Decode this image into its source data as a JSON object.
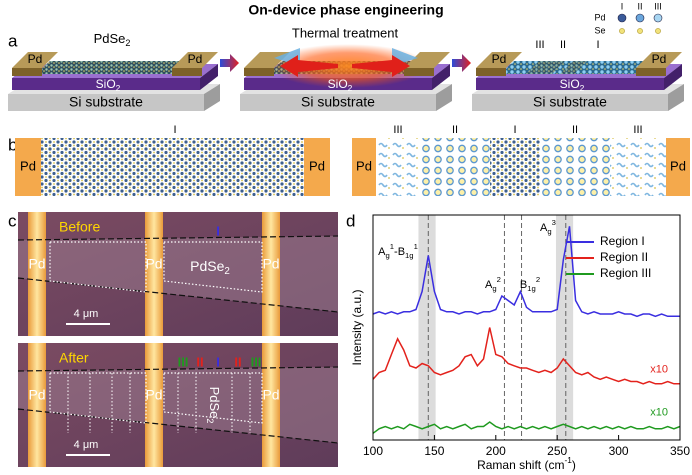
{
  "title": "On-device phase engineering",
  "panel_labels": [
    "a",
    "b",
    "c",
    "d"
  ],
  "panel_a": {
    "electrode": "Pd",
    "material": "PdSe",
    "material_sub": "2",
    "process": "Thermal treatment",
    "oxide": "SiO",
    "oxide_sub": "2",
    "substrate": "Si substrate",
    "regions": [
      "III",
      "II",
      "I"
    ],
    "legend": {
      "columns": [
        "I",
        "II",
        "III"
      ],
      "rows": [
        "Pd",
        "Se"
      ]
    }
  },
  "panel_b": {
    "electrode": "Pd",
    "left_regions": [
      "I"
    ],
    "right_regions": [
      "III",
      "II",
      "I",
      "II",
      "III"
    ]
  },
  "panel_c": {
    "electrode": "Pd",
    "material": "PdSe",
    "material_sub": "2",
    "before": "Before",
    "after": "After",
    "scale_bar": "4 μm",
    "regions_before": [
      "I"
    ],
    "regions_after": [
      "III",
      "II",
      "I",
      "II",
      "III"
    ]
  },
  "chart_data": {
    "type": "line",
    "x_label": "Raman shift (cm",
    "x_label_sup": "-1",
    "x_label_end": ")",
    "y_label": "Intensity (a.u.)",
    "xlim": [
      100,
      350
    ],
    "xticks": [
      100,
      150,
      200,
      250,
      300,
      350
    ],
    "ylim": [
      0,
      100
    ],
    "x": [
      100,
      105,
      110,
      115,
      120,
      125,
      130,
      135,
      140,
      145,
      150,
      155,
      160,
      165,
      170,
      175,
      180,
      185,
      190,
      195,
      200,
      205,
      210,
      215,
      220,
      225,
      230,
      235,
      240,
      245,
      250,
      255,
      260,
      265,
      270,
      275,
      280,
      285,
      290,
      295,
      300,
      305,
      310,
      315,
      320,
      325,
      330,
      335,
      340,
      345,
      350
    ],
    "series": [
      {
        "name": "Region I",
        "color": "#3a2ee0",
        "values": [
          56,
          57,
          56,
          57,
          56,
          57,
          57,
          58,
          66,
          82,
          66,
          58,
          57,
          57,
          56,
          57,
          57,
          56,
          57,
          57,
          58,
          64,
          62,
          60,
          66,
          59,
          57,
          57,
          57,
          57,
          58,
          80,
          95,
          62,
          57,
          56,
          57,
          56,
          56,
          56,
          57,
          56,
          56,
          55,
          56,
          56,
          55,
          56,
          55,
          55,
          55
        ]
      },
      {
        "name": "Region II",
        "color": "#e3221c",
        "scale_label": "x10",
        "values": [
          27,
          30,
          31,
          38,
          45,
          40,
          33,
          32,
          34,
          33,
          30,
          29,
          30,
          31,
          33,
          37,
          38,
          33,
          36,
          50,
          38,
          37,
          34,
          33,
          32,
          32,
          31,
          30,
          31,
          30,
          32,
          36,
          33,
          30,
          29,
          30,
          28,
          27,
          28,
          27,
          26,
          27,
          26,
          26,
          25,
          26,
          25,
          25,
          26,
          25,
          25
        ]
      },
      {
        "name": "Region III",
        "color": "#1f9a1f",
        "scale_label": "x10",
        "values": [
          3,
          5,
          6,
          5,
          6,
          5,
          7,
          6,
          5,
          6,
          7,
          5,
          6,
          5,
          6,
          7,
          5,
          6,
          6,
          8,
          6,
          5,
          6,
          5,
          6,
          5,
          6,
          5,
          6,
          5,
          6,
          7,
          6,
          5,
          6,
          5,
          6,
          5,
          6,
          5,
          6,
          5,
          6,
          5,
          5,
          6,
          5,
          5,
          6,
          5,
          6
        ]
      }
    ],
    "legend": "upper right",
    "shaded_bands": [
      [
        137,
        151
      ],
      [
        249,
        263
      ]
    ],
    "reference_lines": [
      145,
      207,
      221,
      257
    ],
    "peak_labels": [
      {
        "parts": [
          {
            "base": "A",
            "sub": "g",
            "sup": "1"
          },
          {
            "base": "-B",
            "sub": "1g",
            "sup": "1"
          }
        ]
      },
      {
        "parts": [
          {
            "base": "A",
            "sub": "g",
            "sup": "2"
          }
        ]
      },
      {
        "parts": [
          {
            "base": "B",
            "sub": "1g",
            "sup": "2"
          }
        ]
      },
      {
        "parts": [
          {
            "base": "A",
            "sub": "g",
            "sup": "3"
          }
        ]
      }
    ]
  }
}
